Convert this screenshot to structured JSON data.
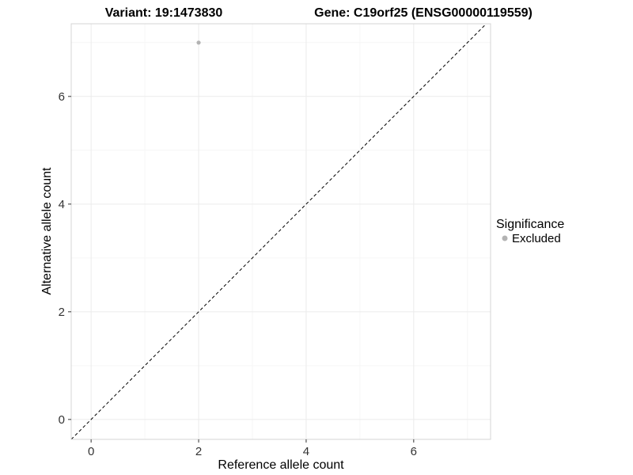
{
  "titles": {
    "variant": "Variant: 19:1473830",
    "gene": "Gene: C19orf25 (ENSG00000119559)"
  },
  "chart_data": {
    "type": "scatter",
    "title": "Variant: 19:1473830    Gene: C19orf25 (ENSG00000119559)",
    "xlabel": "Reference allele count",
    "ylabel": "Alternative allele count",
    "xlim": [
      -0.37,
      7.43
    ],
    "ylim": [
      -0.37,
      7.35
    ],
    "xticks": [
      0,
      2,
      4,
      6
    ],
    "yticks": [
      0,
      2,
      4,
      6
    ],
    "minor_ticks": [
      1,
      3,
      5,
      7
    ],
    "grid": true,
    "points": [
      {
        "x": 2,
        "y": 7,
        "series": "Excluded"
      }
    ],
    "identity_line": {
      "style": "dashed",
      "equation": "y = x"
    },
    "legend": {
      "title": "Significance",
      "position": "right",
      "entries": [
        {
          "label": "Excluded",
          "color": "#b3b3b3"
        }
      ]
    },
    "colors": {
      "point": "#b3b3b3",
      "grid_major": "#ebebeb",
      "grid_minor": "#f6f6f6",
      "panel_border": "#d4d4d4",
      "tick": "#333333",
      "tick_label": "#333333",
      "identity_line": "#000000",
      "background": "#ffffff"
    }
  }
}
